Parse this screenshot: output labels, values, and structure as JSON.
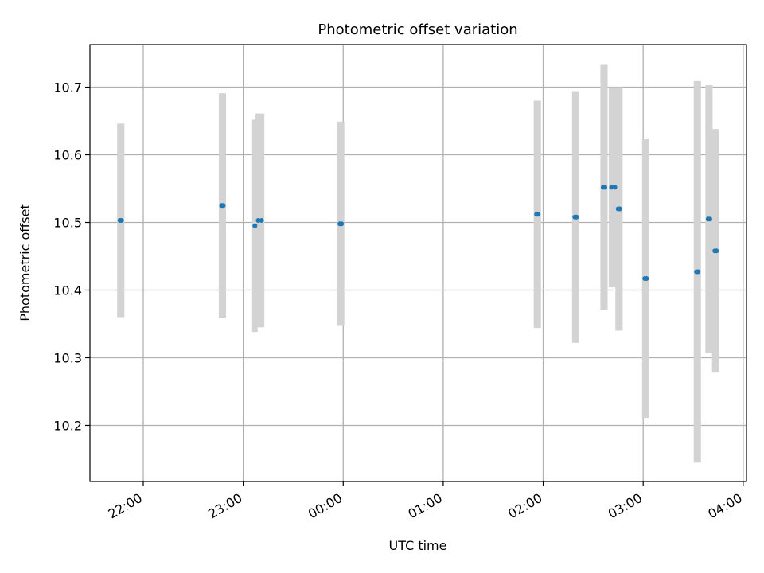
{
  "chart_data": {
    "type": "scatter",
    "title": "Photometric offset variation",
    "xlabel": "UTC time",
    "ylabel": "Photometric offset",
    "xlim": [
      "21:28",
      "04:02"
    ],
    "ylim": [
      10.117,
      10.763
    ],
    "x_ticks": [
      "22:00",
      "23:00",
      "00:00",
      "01:00",
      "02:00",
      "03:00",
      "04:00"
    ],
    "y_ticks": [
      10.2,
      10.3,
      10.4,
      10.5,
      10.6,
      10.7
    ],
    "grid": true,
    "colors": {
      "points": "#1f77b4",
      "errorbars": "#d3d3d3"
    },
    "points": [
      {
        "t": "21:46",
        "y": 10.503,
        "yerr": 0.143
      },
      {
        "t": "21:47",
        "y": 10.503,
        "yerr": 0.143
      },
      {
        "t": "22:47",
        "y": 10.525,
        "yerr": 0.166
      },
      {
        "t": "22:48",
        "y": 10.525,
        "yerr": 0.166
      },
      {
        "t": "23:07",
        "y": 10.495,
        "yerr": 0.157
      },
      {
        "t": "23:09",
        "y": 10.503,
        "yerr": 0.158
      },
      {
        "t": "23:11",
        "y": 10.503,
        "yerr": 0.158
      },
      {
        "t": "23:58",
        "y": 10.498,
        "yerr": 0.151
      },
      {
        "t": "23:59",
        "y": 10.498,
        "yerr": 0.151
      },
      {
        "t": "01:56",
        "y": 10.512,
        "yerr": 0.168
      },
      {
        "t": "01:57",
        "y": 10.512,
        "yerr": 0.168
      },
      {
        "t": "02:19",
        "y": 10.508,
        "yerr": 0.186
      },
      {
        "t": "02:20",
        "y": 10.508,
        "yerr": 0.186
      },
      {
        "t": "02:36",
        "y": 10.552,
        "yerr": 0.181
      },
      {
        "t": "02:37",
        "y": 10.552,
        "yerr": 0.181
      },
      {
        "t": "02:41",
        "y": 10.552,
        "yerr": 0.148
      },
      {
        "t": "02:43",
        "y": 10.552,
        "yerr": 0.148
      },
      {
        "t": "02:45",
        "y": 10.52,
        "yerr": 0.18
      },
      {
        "t": "02:46",
        "y": 10.52,
        "yerr": 0.18
      },
      {
        "t": "03:01",
        "y": 10.417,
        "yerr": 0.206
      },
      {
        "t": "03:02",
        "y": 10.417,
        "yerr": 0.206
      },
      {
        "t": "03:32",
        "y": 10.427,
        "yerr": 0.282
      },
      {
        "t": "03:33",
        "y": 10.427,
        "yerr": 0.282
      },
      {
        "t": "03:39",
        "y": 10.505,
        "yerr": 0.198
      },
      {
        "t": "03:40",
        "y": 10.505,
        "yerr": 0.198
      },
      {
        "t": "03:43",
        "y": 10.458,
        "yerr": 0.18
      },
      {
        "t": "03:44",
        "y": 10.458,
        "yerr": 0.18
      }
    ]
  }
}
